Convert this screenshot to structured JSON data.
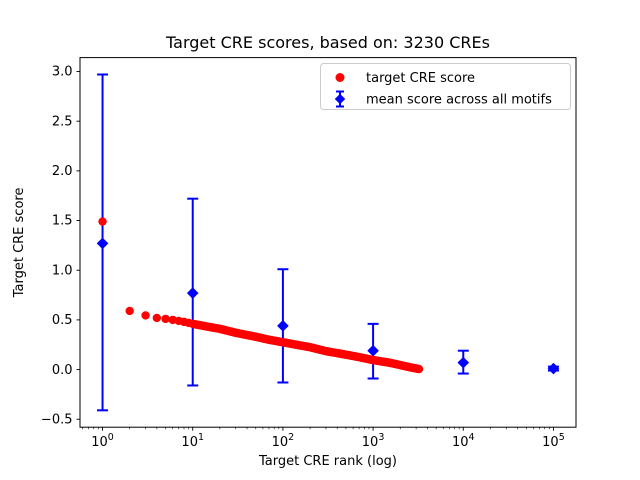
{
  "figure": {
    "title": "Target CRE scores, based on: 3230 CREs",
    "xlabel": "Target CRE rank (log)",
    "ylabel": "Target CRE score"
  },
  "chart_data": {
    "type": "scatter",
    "title": "Target CRE scores, based on: 3230 CREs",
    "xlabel": "Target CRE rank (log)",
    "ylabel": "Target CRE score",
    "x_scale": "log",
    "xlim_log10": [
      -0.25,
      5.25
    ],
    "ylim": [
      -0.58,
      3.14
    ],
    "grid": false,
    "x_major_tick_exponents": [
      0,
      1,
      2,
      3,
      4,
      5
    ],
    "y_ticks": [
      -0.5,
      0.0,
      0.5,
      1.0,
      1.5,
      2.0,
      2.5,
      3.0
    ],
    "y_tick_labels": [
      "−0.5",
      "0.0",
      "0.5",
      "1.0",
      "1.5",
      "2.0",
      "2.5",
      "3.0"
    ],
    "legend": {
      "location": "upper right",
      "entries": [
        {
          "label": "target CRE score",
          "marker": "circle",
          "color": "#ff0000"
        },
        {
          "label": "mean score across all motifs",
          "marker": "diamond-errorbar",
          "color": "#0000ff"
        }
      ]
    },
    "series": [
      {
        "name": "target CRE score",
        "type": "scatter",
        "marker": "circle",
        "color": "#ff0000",
        "n_points": 3230,
        "points_rank_score": [
          [
            1,
            1.49
          ],
          [
            2,
            0.59
          ],
          [
            3,
            0.545
          ],
          [
            4,
            0.52
          ],
          [
            5,
            0.51
          ],
          [
            6,
            0.5
          ],
          [
            7,
            0.49
          ],
          [
            8,
            0.48
          ],
          [
            9,
            0.47
          ],
          [
            10,
            0.46
          ],
          [
            15,
            0.43
          ],
          [
            20,
            0.41
          ],
          [
            30,
            0.37
          ],
          [
            50,
            0.33
          ],
          [
            70,
            0.3
          ],
          [
            100,
            0.275
          ],
          [
            150,
            0.245
          ],
          [
            200,
            0.225
          ],
          [
            300,
            0.185
          ],
          [
            500,
            0.15
          ],
          [
            700,
            0.125
          ],
          [
            1000,
            0.095
          ],
          [
            1500,
            0.07
          ],
          [
            2000,
            0.045
          ],
          [
            2500,
            0.025
          ],
          [
            3230,
            0.005
          ]
        ]
      },
      {
        "name": "mean score across all motifs",
        "type": "errorbar",
        "marker": "diamond",
        "color": "#0000ff",
        "points": [
          {
            "x": 1,
            "mean": 1.27,
            "err_up": 1.7,
            "err_down": 1.68
          },
          {
            "x": 10,
            "mean": 0.77,
            "err_up": 0.95,
            "err_down": 0.93
          },
          {
            "x": 100,
            "mean": 0.44,
            "err_up": 0.57,
            "err_down": 0.57
          },
          {
            "x": 1000,
            "mean": 0.19,
            "err_up": 0.27,
            "err_down": 0.28
          },
          {
            "x": 10000,
            "mean": 0.07,
            "err_up": 0.12,
            "err_down": 0.11
          },
          {
            "x": 100000,
            "mean": 0.01,
            "err_up": 0.02,
            "err_down": 0.02
          }
        ]
      }
    ],
    "colors": {
      "background": "#ffffff",
      "axes": "#000000",
      "target_series": "#ff0000",
      "mean_series": "#0000ff",
      "legend_border": "#cccccc"
    }
  }
}
